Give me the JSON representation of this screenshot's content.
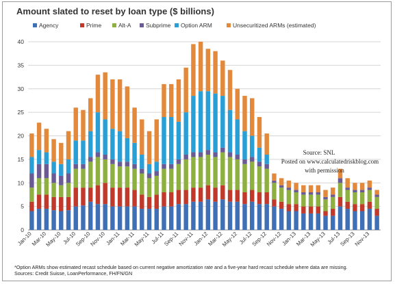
{
  "chart_data": {
    "type": "bar",
    "stacked": true,
    "title": "Amount slated to reset by loan type ($ billions)",
    "ylim": [
      0,
      40
    ],
    "yticks": [
      0,
      5,
      10,
      15,
      20,
      25,
      30,
      35,
      40
    ],
    "grid": true,
    "legend_placement": "top",
    "categories": [
      "Jan-10",
      "Feb-10",
      "Mar-10",
      "Apr-10",
      "May-10",
      "Jun-10",
      "Jul-10",
      "Aug-10",
      "Sep-10",
      "Oct-10",
      "Nov-10",
      "Dec-10",
      "Jan-11",
      "Feb-11",
      "Mar-11",
      "Apr-11",
      "May-11",
      "Jun-11",
      "Jul-11",
      "Aug-11",
      "Sep-11",
      "Oct-11",
      "Nov-11",
      "Dec-11",
      "Jan-12",
      "Feb-12",
      "Mar-12",
      "Apr-12",
      "May-12",
      "Jun-12",
      "Jul-12",
      "Aug-12",
      "Sep-12",
      "Oct-12",
      "Nov-12",
      "Dec-12",
      "Jan-13",
      "Feb-13",
      "Mar-13",
      "Apr-13",
      "May-13",
      "Jun-13",
      "Jul-13",
      "Aug-13",
      "Sep-13",
      "Oct-13",
      "Nov-13",
      "Dec-13"
    ],
    "xtick_labels": [
      "Jan-10",
      "Mar-10",
      "May-10",
      "Jul-10",
      "Sep-10",
      "Nov-10",
      "Jan-11",
      "Mar-11",
      "May-11",
      "Jul-11",
      "Sep-11",
      "Nov-11",
      "Jan-12",
      "Mar-12",
      "May-12",
      "Jul-12",
      "Sep-12",
      "Nov-12",
      "Jan-13",
      "Mar-13",
      "May-13",
      "Jul-13",
      "Sep-13",
      "Nov-13"
    ],
    "series": [
      {
        "name": "Agency",
        "color": "#3f6fb5",
        "values": [
          4.0,
          4.5,
          4.5,
          4.2,
          4.0,
          4.2,
          5.0,
          5.2,
          6.0,
          5.5,
          5.5,
          5.0,
          5.0,
          5.0,
          5.0,
          4.5,
          4.5,
          4.5,
          5.0,
          5.0,
          5.5,
          5.5,
          6.0,
          6.0,
          6.5,
          6.0,
          6.5,
          6.0,
          6.0,
          5.5,
          6.0,
          5.5,
          5.5,
          5.0,
          4.5,
          4.0,
          4.0,
          3.5,
          3.5,
          3.5,
          3.0,
          3.0,
          5.0,
          4.5,
          4.0,
          4.0,
          4.5,
          3.0
        ]
      },
      {
        "name": "Prime",
        "color": "#c0392b",
        "values": [
          2.0,
          3.0,
          3.0,
          2.8,
          3.0,
          2.8,
          4.0,
          3.8,
          3.0,
          4.0,
          4.5,
          4.0,
          4.0,
          4.0,
          3.5,
          3.0,
          2.5,
          3.0,
          3.0,
          3.0,
          3.0,
          3.0,
          3.0,
          3.0,
          3.0,
          3.0,
          3.0,
          2.5,
          2.5,
          2.5,
          2.5,
          2.5,
          2.5,
          1.5,
          1.5,
          1.5,
          1.5,
          1.5,
          1.5,
          1.5,
          1.0,
          1.5,
          2.0,
          1.5,
          1.5,
          1.5,
          1.5,
          1.5
        ]
      },
      {
        "name": "Alt-A",
        "color": "#8db040",
        "values": [
          3.0,
          3.5,
          3.5,
          3.0,
          2.5,
          3.0,
          4.0,
          4.0,
          5.5,
          6.0,
          5.0,
          5.0,
          4.5,
          4.5,
          4.5,
          4.5,
          4.0,
          4.0,
          5.0,
          5.0,
          5.5,
          6.5,
          6.5,
          6.5,
          6.5,
          6.5,
          7.0,
          7.0,
          6.5,
          6.0,
          6.0,
          5.5,
          5.0,
          3.5,
          3.0,
          3.0,
          2.5,
          2.5,
          2.5,
          2.5,
          2.5,
          2.5,
          3.0,
          2.5,
          2.5,
          2.5,
          2.5,
          2.5
        ]
      },
      {
        "name": "Subprime",
        "color": "#6b5b95",
        "values": [
          3.0,
          3.0,
          3.0,
          2.0,
          2.0,
          2.0,
          1.0,
          1.0,
          1.0,
          1.0,
          1.0,
          1.0,
          1.0,
          1.0,
          1.0,
          1.0,
          1.0,
          1.0,
          1.0,
          1.0,
          1.0,
          1.0,
          1.0,
          1.0,
          1.0,
          1.0,
          1.0,
          1.0,
          1.0,
          1.0,
          1.0,
          1.0,
          1.0,
          0.5,
          0.5,
          0.5,
          0.5,
          0.5,
          0.5,
          0.5,
          0.5,
          0.5,
          1.0,
          0.5,
          0.5,
          0.5,
          0.5,
          0.5
        ]
      },
      {
        "name": "Option ARM",
        "color": "#2a9fd6",
        "values": [
          3.5,
          3.0,
          2.5,
          2.5,
          2.5,
          3.0,
          5.0,
          5.0,
          5.5,
          8.5,
          7.5,
          6.5,
          6.5,
          5.0,
          4.5,
          3.0,
          2.0,
          2.0,
          10.0,
          10.0,
          8.0,
          9.0,
          12.0,
          13.0,
          12.5,
          12.5,
          11.0,
          9.0,
          7.5,
          6.0,
          4.5,
          3.0,
          2.0,
          0.0,
          0.0,
          0.0,
          0.0,
          0.0,
          0.0,
          0.0,
          0.0,
          0.0,
          0.0,
          0.0,
          0.0,
          0.0,
          0.0,
          0.0
        ]
      },
      {
        "name": "Unsecuritized ARMs (estimated)",
        "color": "#e2893b",
        "values": [
          5.0,
          5.8,
          5.0,
          4.8,
          4.5,
          6.0,
          7.0,
          6.5,
          7.0,
          8.0,
          10.0,
          10.5,
          11.0,
          11.0,
          7.5,
          7.5,
          7.0,
          9.0,
          7.0,
          7.0,
          9.0,
          9.5,
          11.0,
          10.5,
          9.0,
          9.0,
          7.5,
          8.5,
          6.5,
          7.5,
          8.0,
          6.5,
          4.5,
          1.5,
          1.5,
          1.5,
          1.5,
          1.5,
          1.5,
          1.5,
          1.5,
          1.5,
          2.0,
          2.0,
          1.5,
          1.5,
          1.5,
          1.0
        ]
      }
    ]
  },
  "legend_labels": [
    "Agency",
    "Prime",
    "Alt-A",
    "Subprime",
    "Option ARM",
    "Unsecuritized ARMs (estimated)"
  ],
  "watermark": {
    "line1": "Source: SNL",
    "line2": "Posted on www.calculatedriskblog.com",
    "line3": "with permission"
  },
  "footnote": "*Option ARMs show estimated recast schedule based on current negative amortization rate and a five-year hard recast schedule where data are missing.",
  "sources": "Sources: Credit Suisse, LoanPerformance, FH/FN/GN"
}
